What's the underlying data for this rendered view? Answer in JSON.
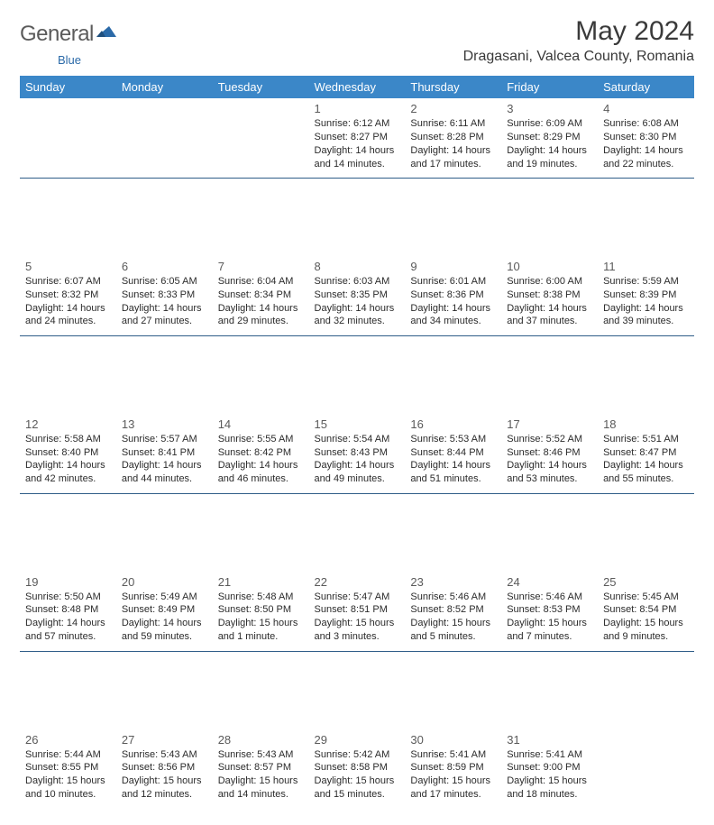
{
  "brand": {
    "word1": "General",
    "word2": "Blue",
    "word1_color": "#5b5b5b",
    "word2_color": "#2b6aa8",
    "mark_color": "#2b6aa8"
  },
  "header": {
    "month_title": "May 2024",
    "location": "Dragasani, Valcea County, Romania"
  },
  "colors": {
    "header_bg": "#3b87c8",
    "week_border": "#2f5d88"
  },
  "day_labels": [
    "Sunday",
    "Monday",
    "Tuesday",
    "Wednesday",
    "Thursday",
    "Friday",
    "Saturday"
  ],
  "weeks": [
    [
      null,
      null,
      null,
      {
        "n": "1",
        "sr": "6:12 AM",
        "ss": "8:27 PM",
        "dl": "14 hours and 14 minutes."
      },
      {
        "n": "2",
        "sr": "6:11 AM",
        "ss": "8:28 PM",
        "dl": "14 hours and 17 minutes."
      },
      {
        "n": "3",
        "sr": "6:09 AM",
        "ss": "8:29 PM",
        "dl": "14 hours and 19 minutes."
      },
      {
        "n": "4",
        "sr": "6:08 AM",
        "ss": "8:30 PM",
        "dl": "14 hours and 22 minutes."
      }
    ],
    [
      {
        "n": "5",
        "sr": "6:07 AM",
        "ss": "8:32 PM",
        "dl": "14 hours and 24 minutes."
      },
      {
        "n": "6",
        "sr": "6:05 AM",
        "ss": "8:33 PM",
        "dl": "14 hours and 27 minutes."
      },
      {
        "n": "7",
        "sr": "6:04 AM",
        "ss": "8:34 PM",
        "dl": "14 hours and 29 minutes."
      },
      {
        "n": "8",
        "sr": "6:03 AM",
        "ss": "8:35 PM",
        "dl": "14 hours and 32 minutes."
      },
      {
        "n": "9",
        "sr": "6:01 AM",
        "ss": "8:36 PM",
        "dl": "14 hours and 34 minutes."
      },
      {
        "n": "10",
        "sr": "6:00 AM",
        "ss": "8:38 PM",
        "dl": "14 hours and 37 minutes."
      },
      {
        "n": "11",
        "sr": "5:59 AM",
        "ss": "8:39 PM",
        "dl": "14 hours and 39 minutes."
      }
    ],
    [
      {
        "n": "12",
        "sr": "5:58 AM",
        "ss": "8:40 PM",
        "dl": "14 hours and 42 minutes."
      },
      {
        "n": "13",
        "sr": "5:57 AM",
        "ss": "8:41 PM",
        "dl": "14 hours and 44 minutes."
      },
      {
        "n": "14",
        "sr": "5:55 AM",
        "ss": "8:42 PM",
        "dl": "14 hours and 46 minutes."
      },
      {
        "n": "15",
        "sr": "5:54 AM",
        "ss": "8:43 PM",
        "dl": "14 hours and 49 minutes."
      },
      {
        "n": "16",
        "sr": "5:53 AM",
        "ss": "8:44 PM",
        "dl": "14 hours and 51 minutes."
      },
      {
        "n": "17",
        "sr": "5:52 AM",
        "ss": "8:46 PM",
        "dl": "14 hours and 53 minutes."
      },
      {
        "n": "18",
        "sr": "5:51 AM",
        "ss": "8:47 PM",
        "dl": "14 hours and 55 minutes."
      }
    ],
    [
      {
        "n": "19",
        "sr": "5:50 AM",
        "ss": "8:48 PM",
        "dl": "14 hours and 57 minutes."
      },
      {
        "n": "20",
        "sr": "5:49 AM",
        "ss": "8:49 PM",
        "dl": "14 hours and 59 minutes."
      },
      {
        "n": "21",
        "sr": "5:48 AM",
        "ss": "8:50 PM",
        "dl": "15 hours and 1 minute."
      },
      {
        "n": "22",
        "sr": "5:47 AM",
        "ss": "8:51 PM",
        "dl": "15 hours and 3 minutes."
      },
      {
        "n": "23",
        "sr": "5:46 AM",
        "ss": "8:52 PM",
        "dl": "15 hours and 5 minutes."
      },
      {
        "n": "24",
        "sr": "5:46 AM",
        "ss": "8:53 PM",
        "dl": "15 hours and 7 minutes."
      },
      {
        "n": "25",
        "sr": "5:45 AM",
        "ss": "8:54 PM",
        "dl": "15 hours and 9 minutes."
      }
    ],
    [
      {
        "n": "26",
        "sr": "5:44 AM",
        "ss": "8:55 PM",
        "dl": "15 hours and 10 minutes."
      },
      {
        "n": "27",
        "sr": "5:43 AM",
        "ss": "8:56 PM",
        "dl": "15 hours and 12 minutes."
      },
      {
        "n": "28",
        "sr": "5:43 AM",
        "ss": "8:57 PM",
        "dl": "15 hours and 14 minutes."
      },
      {
        "n": "29",
        "sr": "5:42 AM",
        "ss": "8:58 PM",
        "dl": "15 hours and 15 minutes."
      },
      {
        "n": "30",
        "sr": "5:41 AM",
        "ss": "8:59 PM",
        "dl": "15 hours and 17 minutes."
      },
      {
        "n": "31",
        "sr": "5:41 AM",
        "ss": "9:00 PM",
        "dl": "15 hours and 18 minutes."
      },
      null
    ]
  ],
  "labels": {
    "sunrise": "Sunrise:",
    "sunset": "Sunset:",
    "daylight": "Daylight:"
  }
}
